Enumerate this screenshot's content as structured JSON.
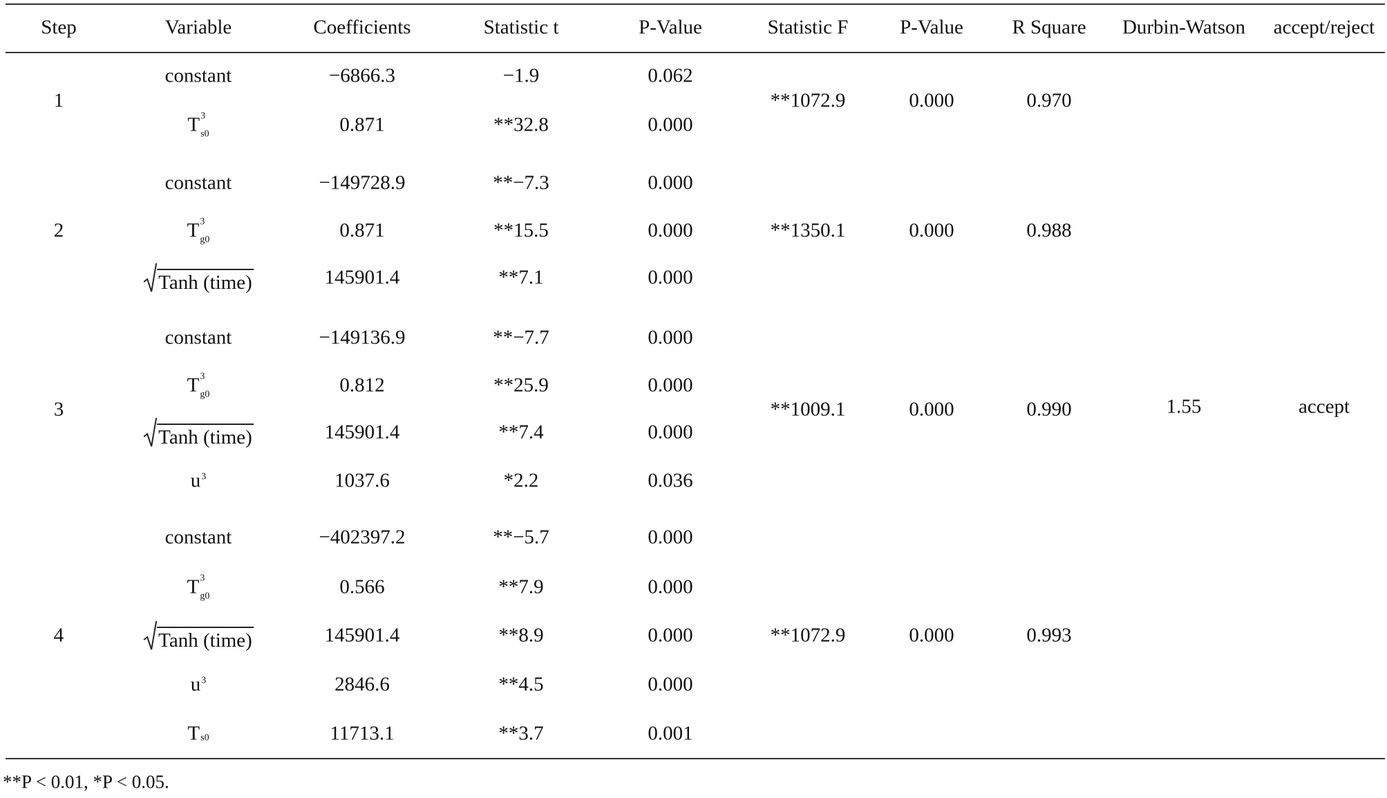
{
  "header": {
    "columns": [
      "Step",
      "Variable",
      "Coefficients",
      "Statistic t",
      "P-Value",
      "Statistic F",
      "P-Value",
      "R Square",
      "Durbin-Watson",
      "accept/reject"
    ]
  },
  "steps": [
    {
      "step": "1",
      "statistic_f": "**1072.9",
      "p_value": "0.000",
      "r_square": "0.970",
      "rows": [
        {
          "variable": {
            "text": "constant"
          },
          "coefficient": "−6866.3",
          "statistic_t": "−1.9",
          "p_value": "0.062"
        },
        {
          "variable": {
            "base": "T",
            "sup": "3",
            "sub": "s0"
          },
          "coefficient": "0.871",
          "statistic_t": "**32.8",
          "p_value": "0.000"
        }
      ]
    },
    {
      "step": "2",
      "statistic_f": "**1350.1",
      "p_value": "0.000",
      "r_square": "0.988",
      "rows": [
        {
          "variable": {
            "text": "constant"
          },
          "coefficient": "−149728.9",
          "statistic_t": "**−7.3",
          "p_value": "0.000"
        },
        {
          "variable": {
            "base": "T",
            "sup": "3",
            "sub": "g0"
          },
          "coefficient": "0.871",
          "statistic_t": "**15.5",
          "p_value": "0.000"
        },
        {
          "variable": {
            "text": "Tanh (time)",
            "root": true
          },
          "coefficient": "145901.4",
          "statistic_t": "**7.1",
          "p_value": "0.000"
        }
      ]
    },
    {
      "step": "3",
      "statistic_f": "**1009.1",
      "p_value": "0.000",
      "r_square": "0.990",
      "rows": [
        {
          "variable": {
            "text": "constant"
          },
          "coefficient": "−149136.9",
          "statistic_t": "**−7.7",
          "p_value": "0.000"
        },
        {
          "variable": {
            "base": "T",
            "sup": "3",
            "sub": "g0"
          },
          "coefficient": "0.812",
          "statistic_t": "**25.9",
          "p_value": "0.000"
        },
        {
          "variable": {
            "text": "Tanh (time)",
            "root": true
          },
          "coefficient": "145901.4",
          "statistic_t": "**7.4",
          "p_value": "0.000"
        },
        {
          "variable": {
            "base": "u",
            "sup": "3"
          },
          "coefficient": "1037.6",
          "statistic_t": "*2.2",
          "p_value": "0.036"
        }
      ]
    },
    {
      "step": "4",
      "statistic_f": "**1072.9",
      "p_value": "0.000",
      "r_square": "0.993",
      "rows": [
        {
          "variable": {
            "text": "constant"
          },
          "coefficient": "−402397.2",
          "statistic_t": "**−5.7",
          "p_value": "0.000"
        },
        {
          "variable": {
            "base": "T",
            "sup": "3",
            "sub": "g0"
          },
          "coefficient": "0.566",
          "statistic_t": "**7.9",
          "p_value": "0.000"
        },
        {
          "variable": {
            "text": "Tanh (time)",
            "root": true
          },
          "coefficient": "145901.4",
          "statistic_t": "**8.9",
          "p_value": "0.000"
        },
        {
          "variable": {
            "base": "u",
            "sup": "3"
          },
          "coefficient": "2846.6",
          "statistic_t": "**4.5",
          "p_value": "0.000"
        },
        {
          "variable": {
            "base": "T",
            "sub": "s0"
          },
          "coefficient": "11713.1",
          "statistic_t": "**3.7",
          "p_value": "0.001"
        }
      ]
    }
  ],
  "durbin_watson": "1.55",
  "decision": "accept",
  "footnote": "**P < 0.01, *P < 0.05."
}
